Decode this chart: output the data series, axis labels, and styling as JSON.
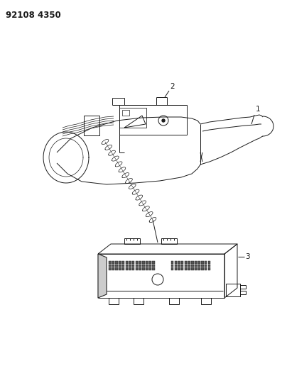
{
  "title": "92108 4350",
  "background_color": "#ffffff",
  "line_color": "#1a1a1a",
  "label1": "1",
  "label2": "2",
  "label3": "3",
  "figsize": [
    4.04,
    5.33
  ],
  "dpi": 100
}
